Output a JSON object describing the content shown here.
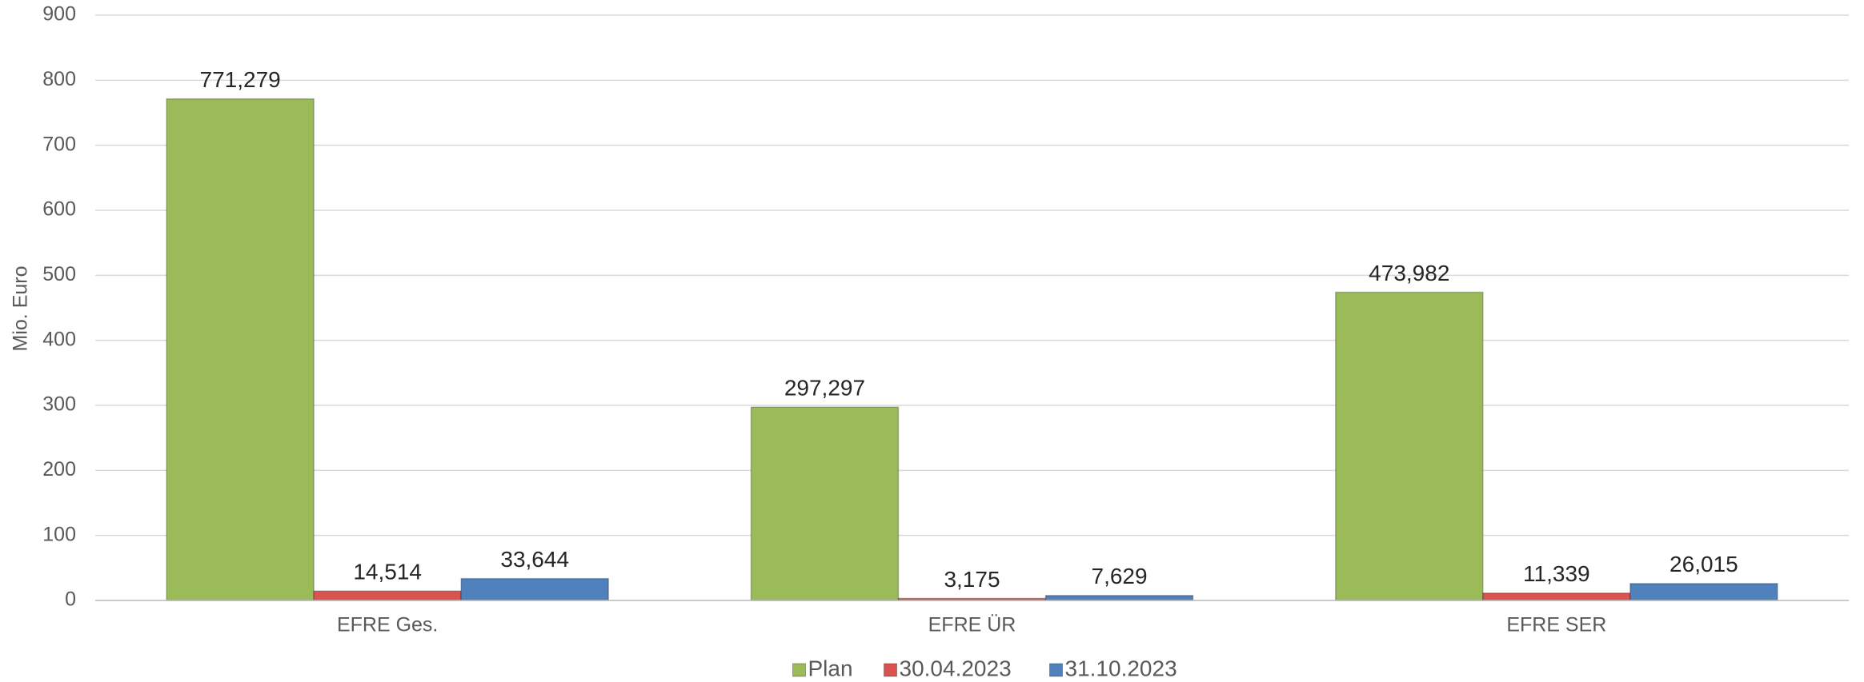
{
  "chart_data": {
    "type": "bar",
    "y_label": "Mio. Euro",
    "categories": [
      "EFRE Ges.",
      "EFRE ÜR",
      "EFRE SER"
    ],
    "series": [
      {
        "name": "Plan",
        "color": "#9bbb59",
        "values": [
          771.279,
          297.297,
          473.982
        ],
        "value_labels": [
          "771,279",
          "297,297",
          "473,982"
        ]
      },
      {
        "name": "30.04.2023",
        "color": "#d9534f",
        "values": [
          14.514,
          3.175,
          11.339
        ],
        "value_labels": [
          "14,514",
          "3,175",
          "11,339"
        ]
      },
      {
        "name": "31.10.2023",
        "color": "#4f81bd",
        "values": [
          33.644,
          7.629,
          26.015
        ],
        "value_labels": [
          "33,644",
          "7,629",
          "26,015"
        ]
      }
    ],
    "ylim": [
      0,
      900
    ],
    "yticks": [
      0,
      100,
      200,
      300,
      400,
      500,
      600,
      700,
      800,
      900
    ],
    "grid": true,
    "legend": "bottom"
  }
}
